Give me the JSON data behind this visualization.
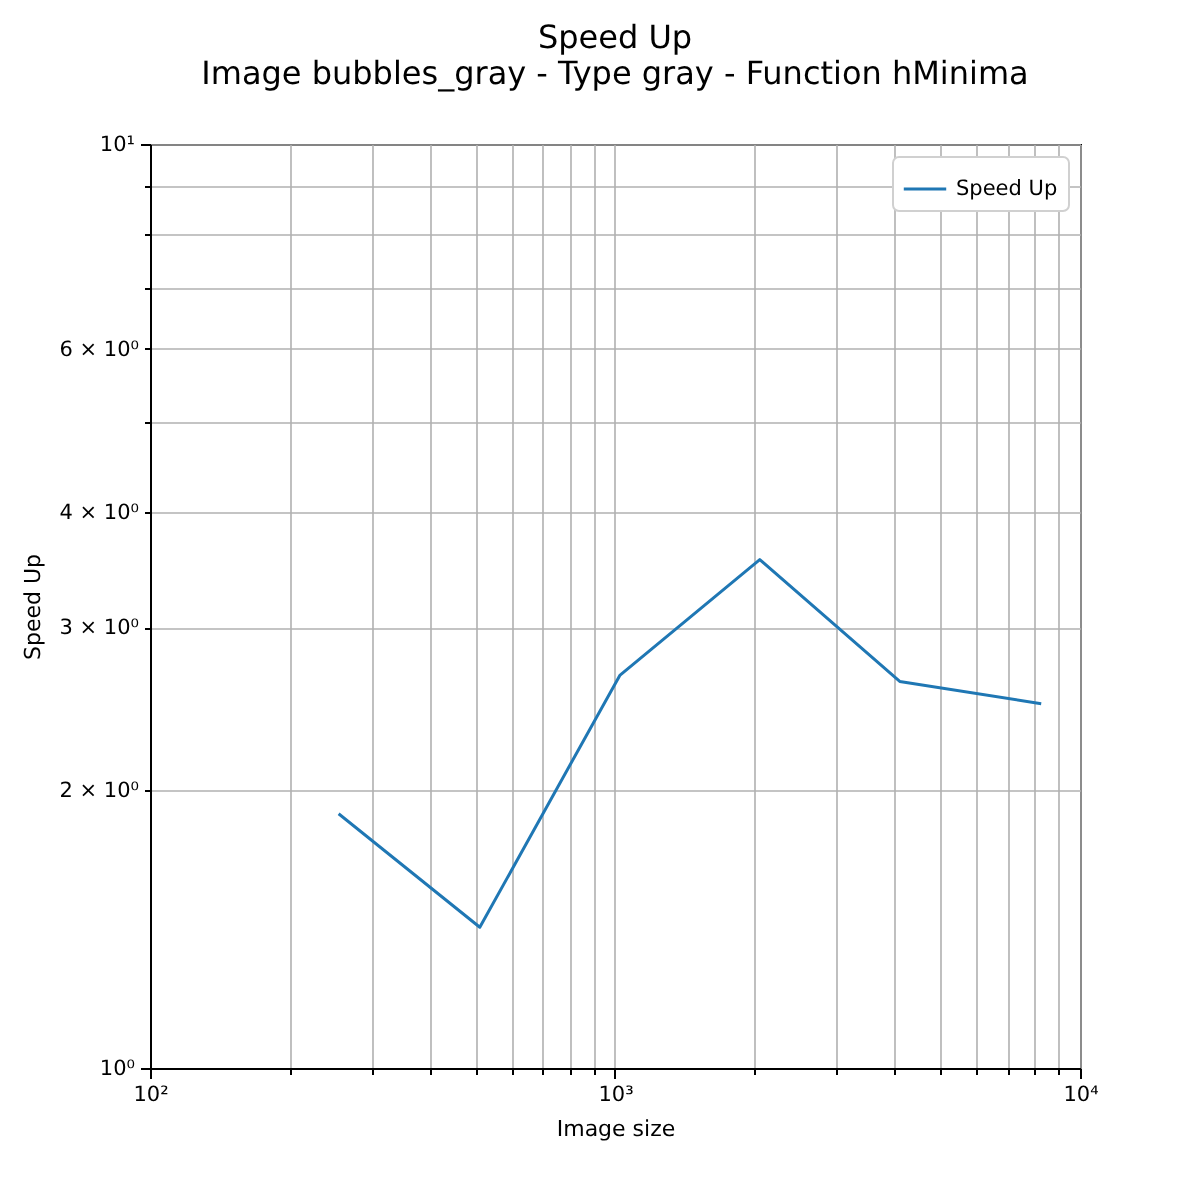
{
  "chart_data": {
    "type": "line",
    "title": "Speed Up",
    "subtitle": "Image bubbles_gray - Type gray - Function hMinima",
    "xlabel": "Image size",
    "ylabel": "Speed Up",
    "x": [
      256,
      512,
      1024,
      2048,
      4096,
      8192
    ],
    "series": [
      {
        "name": "Speed Up",
        "color": "#1f77b4",
        "values": [
          1.88,
          1.42,
          2.66,
          3.55,
          2.62,
          2.48
        ]
      }
    ],
    "log": "xy",
    "xlim": [
      100,
      10000
    ],
    "ylim": [
      1,
      10
    ],
    "xticks": [
      {
        "value": 100,
        "label": "10²"
      },
      {
        "value": 200,
        "label": null
      },
      {
        "value": 300,
        "label": null
      },
      {
        "value": 400,
        "label": null
      },
      {
        "value": 500,
        "label": null
      },
      {
        "value": 600,
        "label": null
      },
      {
        "value": 700,
        "label": null
      },
      {
        "value": 800,
        "label": null
      },
      {
        "value": 900,
        "label": null
      },
      {
        "value": 1000,
        "label": "10³"
      },
      {
        "value": 2000,
        "label": null
      },
      {
        "value": 3000,
        "label": null
      },
      {
        "value": 4000,
        "label": null
      },
      {
        "value": 5000,
        "label": null
      },
      {
        "value": 6000,
        "label": null
      },
      {
        "value": 7000,
        "label": null
      },
      {
        "value": 8000,
        "label": null
      },
      {
        "value": 9000,
        "label": null
      },
      {
        "value": 10000,
        "label": "10⁴"
      }
    ],
    "yticks": [
      {
        "value": 1,
        "label": "10⁰"
      },
      {
        "value": 2,
        "label": "2 × 10⁰"
      },
      {
        "value": 3,
        "label": "3 × 10⁰"
      },
      {
        "value": 4,
        "label": "4 × 10⁰"
      },
      {
        "value": 5,
        "label": null
      },
      {
        "value": 6,
        "label": "6 × 10⁰"
      },
      {
        "value": 7,
        "label": null
      },
      {
        "value": 8,
        "label": null
      },
      {
        "value": 9,
        "label": null
      },
      {
        "value": 10,
        "label": "10¹"
      }
    ],
    "grid": true,
    "legend": "top right",
    "line_style": "solid"
  }
}
